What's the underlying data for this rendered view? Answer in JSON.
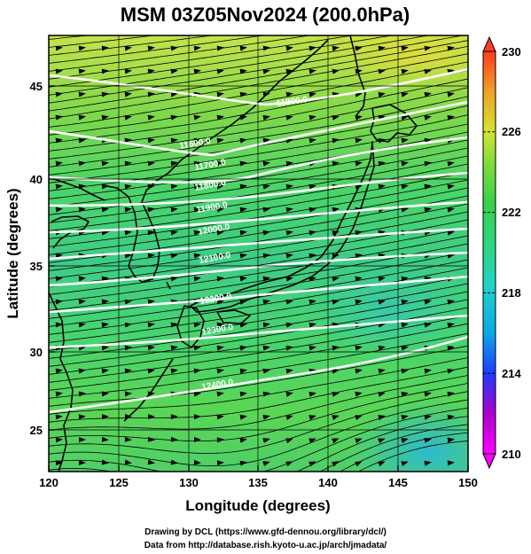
{
  "title": "MSM 03Z05Nov2024 (200.0hPa)",
  "xlabel": "Longitude (degrees)",
  "ylabel": "Latitude  (degrees)",
  "x_ticks": [
    "120",
    "125",
    "130",
    "135",
    "140",
    "145",
    "150"
  ],
  "y_ticks": [
    "25",
    "30",
    "35",
    "40",
    "45"
  ],
  "colorbar_ticks": [
    "230",
    "226",
    "222",
    "218",
    "214",
    "210"
  ],
  "contour_labels": [
    "11800.0",
    "11600.0",
    "11700.0",
    "11800.0",
    "11900.0",
    "12000.0",
    "12100.0",
    "12200.0",
    "12300.0",
    "12400.0"
  ],
  "credit_line1": "Drawing by DCL (https://www.gfd-dennou.org/library/dcl/)",
  "credit_line2": "Data from http://database.rish.kyoto-u.ac.jp/arch/jmadata/",
  "chart_data": {
    "type": "heatmap",
    "title": "MSM 03Z05Nov2024 (200.0hPa)",
    "xlabel": "Longitude (degrees)",
    "ylabel": "Latitude  (degrees)",
    "xlim": [
      120,
      150
    ],
    "ylim": [
      22.4,
      47.6
    ],
    "colorbar": {
      "min": 210,
      "max": 230,
      "ticks": [
        210,
        214,
        218,
        222,
        226,
        230
      ]
    },
    "contours": [
      {
        "label": "11800.0",
        "level": 11800
      },
      {
        "label": "11600.0",
        "level": 11600
      },
      {
        "label": "11700.0",
        "level": 11700
      },
      {
        "label": "11800.0",
        "level": 11800
      },
      {
        "label": "11900.0",
        "level": 11900
      },
      {
        "label": "12000.0",
        "level": 12000
      },
      {
        "label": "12100.0",
        "level": 12100
      },
      {
        "label": "12200.0",
        "level": 12200
      },
      {
        "label": "12300.0",
        "level": 12300
      },
      {
        "label": "12400.0",
        "level": 12400
      }
    ],
    "colors": {
      "low": "#ff00ff",
      "cool": "#1e3cff",
      "mid": "#23c8c8",
      "green": "#2ed25a",
      "warm": "#c8e632",
      "high": "#ff3c1e"
    }
  }
}
